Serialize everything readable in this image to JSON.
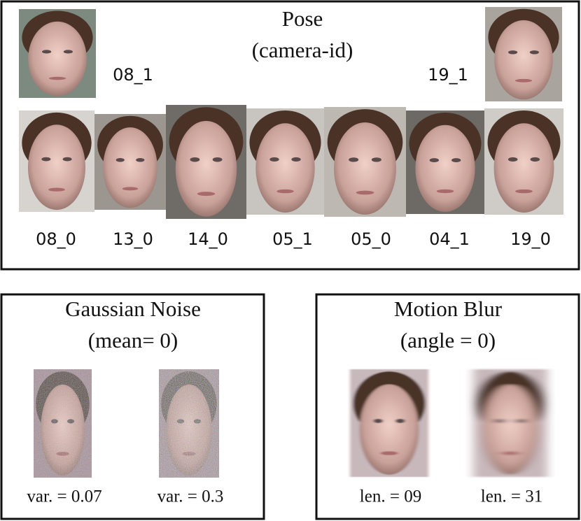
{
  "pose": {
    "title": "Pose",
    "subtitle": "(camera-id)",
    "side_labels": [
      "08_1",
      "19_1"
    ],
    "row_labels": [
      "08_0",
      "13_0",
      "14_0",
      "05_1",
      "05_0",
      "04_1",
      "19_0"
    ]
  },
  "gaussian_noise": {
    "title": "Gaussian Noise",
    "subtitle": "(mean= 0)",
    "labels": [
      "var. = 0.07",
      "var. = 0.3"
    ]
  },
  "motion_blur": {
    "title": "Motion Blur",
    "subtitle": "(angle = 0)",
    "labels": [
      "len. = 09",
      "len. = 31"
    ]
  }
}
